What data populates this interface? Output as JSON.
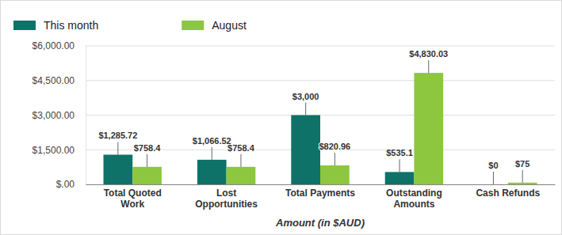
{
  "chart_data": {
    "type": "bar",
    "x_label": "Amount (in $AUD)",
    "categories": [
      "Total Quoted Work",
      "Lost Opportunities",
      "Total Payments",
      "Outstanding Amounts",
      "Cash Refunds"
    ],
    "series": [
      {
        "name": "This month",
        "color": "#0e7268",
        "values": [
          1285.72,
          1066.52,
          3000,
          535.1,
          0
        ],
        "value_labels": [
          "$1,285.72",
          "$1,066.52",
          "$3,000",
          "$535.1",
          "$0"
        ]
      },
      {
        "name": "August",
        "color": "#8dc63f",
        "values": [
          758.4,
          758.4,
          820.96,
          4830.03,
          75
        ],
        "value_labels": [
          "$758.4",
          "$758.4",
          "$820.96",
          "$4,830.03",
          "$75"
        ]
      }
    ],
    "ylim": [
      0,
      6000
    ],
    "yticks": [
      {
        "value": 0,
        "label": "$.00"
      },
      {
        "value": 1500,
        "label": "$1,500.00"
      },
      {
        "value": 3000,
        "label": "$3,000.00"
      },
      {
        "value": 4500,
        "label": "$4,500.00"
      },
      {
        "value": 6000,
        "label": "$6,000.00"
      }
    ],
    "grid": true,
    "legend": "top-left",
    "data_labels": true
  }
}
